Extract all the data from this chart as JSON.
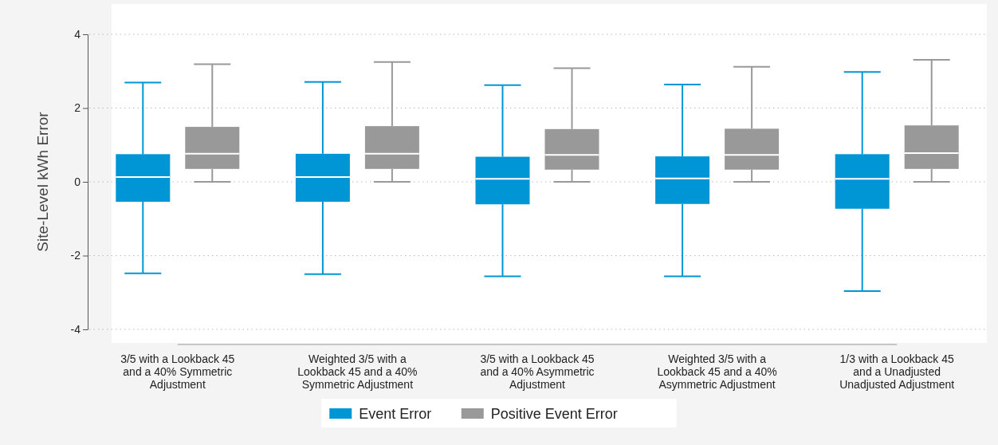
{
  "chart_data": {
    "type": "box",
    "ylabel": "Site-Level kWh Error",
    "categories": [
      "3/5 with a Lookback 45 and a 40% Symmetric Adjustment",
      "Weighted 3/5 with a Lookback 45 and a 40% Symmetric Adjustment",
      "3/5 with a Lookback 45 and a 40% Asymmetric Adjustment",
      "Weighted 3/5 with a Lookback 45 and a 40% Asymmetric Adjustment",
      "1/3 with a Lookback 45 and a Unadjusted Unadjusted Adjustment"
    ],
    "series": [
      {
        "name": "Event Error",
        "color": "#0096d6",
        "boxes": [
          {
            "low": -2.48,
            "q1": -0.54,
            "median": 0.13,
            "q3": 0.75,
            "high": 2.69
          },
          {
            "low": -2.5,
            "q1": -0.54,
            "median": 0.13,
            "q3": 0.76,
            "high": 2.71
          },
          {
            "low": -2.56,
            "q1": -0.61,
            "median": 0.08,
            "q3": 0.68,
            "high": 2.62
          },
          {
            "low": -2.56,
            "q1": -0.6,
            "median": 0.09,
            "q3": 0.69,
            "high": 2.64
          },
          {
            "low": -2.96,
            "q1": -0.73,
            "median": 0.08,
            "q3": 0.75,
            "high": 2.98
          }
        ]
      },
      {
        "name": "Positive Event Error",
        "color": "#999999",
        "boxes": [
          {
            "low": 0,
            "q1": 0.35,
            "median": 0.76,
            "q3": 1.49,
            "high": 3.19
          },
          {
            "low": 0,
            "q1": 0.35,
            "median": 0.76,
            "q3": 1.51,
            "high": 3.25
          },
          {
            "low": 0,
            "q1": 0.33,
            "median": 0.73,
            "q3": 1.43,
            "high": 3.08
          },
          {
            "low": 0,
            "q1": 0.33,
            "median": 0.73,
            "q3": 1.44,
            "high": 3.12
          },
          {
            "low": 0,
            "q1": 0.35,
            "median": 0.78,
            "q3": 1.53,
            "high": 3.31
          }
        ]
      }
    ],
    "ylim": [
      -4,
      4
    ],
    "yticks": [
      -4,
      -2,
      0,
      2,
      4
    ],
    "grid": "y",
    "legend": "bottom"
  }
}
